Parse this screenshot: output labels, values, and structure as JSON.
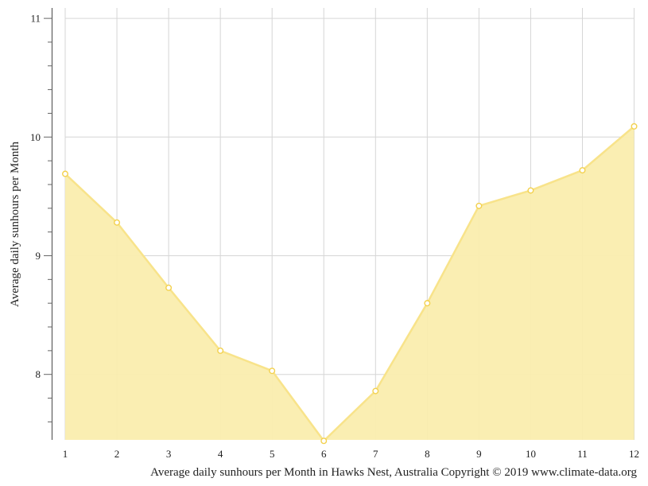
{
  "chart_data": {
    "type": "area",
    "title": "Average daily sunhours per Month in Hawks Nest, Australia",
    "caption": "Average daily sunhours per Month in Hawks Nest, Australia Copyright © 2019 www.climate-data.org",
    "xlabel": "",
    "ylabel": "Average daily sunhours per Month",
    "categories": [
      "1",
      "2",
      "3",
      "4",
      "5",
      "6",
      "7",
      "8",
      "9",
      "10",
      "11",
      "12"
    ],
    "series": [
      {
        "name": "Average daily sunhours",
        "values": [
          9.69,
          9.28,
          8.73,
          8.2,
          8.03,
          7.44,
          7.86,
          8.6,
          9.42,
          9.55,
          9.72,
          10.09
        ]
      }
    ],
    "ylim": [
      7.44,
      11.08
    ],
    "yticks": [
      8,
      9,
      10,
      11
    ],
    "grid": true,
    "legend": "none",
    "colors": {
      "fill": "#FAEDAE",
      "line": "#F8E38A",
      "marker_stroke": "#F3D14E",
      "marker_fill": "#ffffff",
      "grid": "#d6d6d6",
      "axis": "#666666"
    }
  }
}
